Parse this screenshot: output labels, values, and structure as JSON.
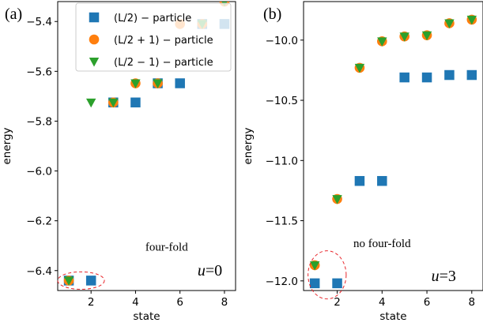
{
  "chart_data": [
    {
      "type": "scatter",
      "panel_label": "(a)",
      "xlabel": "state",
      "ylabel": "energy",
      "xlim": [
        0.5,
        8.5
      ],
      "ylim": [
        -6.48,
        -5.32
      ],
      "xticks": [
        2,
        4,
        6,
        8
      ],
      "yticks": [
        -6.4,
        -6.2,
        -6.0,
        -5.8,
        -5.6,
        -5.4
      ],
      "xtick_labels": [
        "2",
        "4",
        "6",
        "8"
      ],
      "ytick_labels": [
        "−6.4",
        "−6.2",
        "−6.0",
        "−5.8",
        "−5.6",
        "−5.4"
      ],
      "series": [
        {
          "name": "(L/2) − particle",
          "marker": "square",
          "color": "#1f77b4",
          "x": [
            1,
            2,
            3,
            4,
            5,
            6,
            7,
            8
          ],
          "y": [
            -6.44,
            -6.44,
            -5.725,
            -5.725,
            -5.648,
            -5.648,
            -5.41,
            -5.41
          ]
        },
        {
          "name": "(L/2 + 1) − particle",
          "marker": "circle",
          "color": "#ff7f0e",
          "x": [
            1,
            3,
            4,
            5,
            6,
            7,
            8
          ],
          "y": [
            -6.44,
            -5.725,
            -5.648,
            -5.648,
            -5.41,
            -5.41,
            -5.32
          ]
        },
        {
          "name": "(L/2 − 1) − particle",
          "marker": "triangle-down",
          "color": "#2ca02c",
          "x": [
            1,
            2,
            3,
            4,
            5,
            7,
            8
          ],
          "y": [
            -6.44,
            -5.725,
            -5.725,
            -5.648,
            -5.648,
            -5.41,
            -5.32
          ]
        }
      ],
      "annotations": [
        {
          "text": "four-fold",
          "x": 5.4,
          "y": -6.32
        },
        {
          "text": "u=0",
          "italic_prefix": "u",
          "suffix": "=0",
          "x": 7.9,
          "y": -6.42
        }
      ],
      "highlight": {
        "shape": "dashed-ellipse",
        "color": "#e8262b",
        "cx": 1.55,
        "cy": -6.44,
        "rx": 1.05,
        "ry": 0.035
      },
      "legend": "top-right",
      "grid": false
    },
    {
      "type": "scatter",
      "panel_label": "(b)",
      "xlabel": "state",
      "ylabel": "energy",
      "xlim": [
        0.5,
        8.5
      ],
      "ylim": [
        -12.08,
        -9.68
      ],
      "xticks": [
        2,
        4,
        6,
        8
      ],
      "yticks": [
        -12.0,
        -11.5,
        -11.0,
        -10.5,
        -10.0
      ],
      "xtick_labels": [
        "2",
        "4",
        "6",
        "8"
      ],
      "ytick_labels": [
        "−12.0",
        "−11.5",
        "−11.0",
        "−10.5",
        "−10.0"
      ],
      "series": [
        {
          "name": "(L/2) − particle",
          "marker": "square",
          "color": "#1f77b4",
          "x": [
            1,
            2,
            3,
            4,
            5,
            6,
            7,
            8
          ],
          "y": [
            -12.02,
            -12.02,
            -11.17,
            -11.17,
            -10.31,
            -10.31,
            -10.29,
            -10.29
          ]
        },
        {
          "name": "(L/2 + 1) − particle",
          "marker": "circle",
          "color": "#ff7f0e",
          "x": [
            1,
            2,
            3,
            4,
            5,
            6,
            7,
            8
          ],
          "y": [
            -11.87,
            -11.32,
            -10.23,
            -10.01,
            -9.97,
            -9.96,
            -9.86,
            -9.83
          ]
        },
        {
          "name": "(L/2 − 1) − particle",
          "marker": "triangle-down",
          "color": "#2ca02c",
          "x": [
            1,
            2,
            3,
            4,
            5,
            6,
            7,
            8
          ],
          "y": [
            -11.87,
            -11.32,
            -10.23,
            -10.01,
            -9.97,
            -9.96,
            -9.86,
            -9.83
          ]
        }
      ],
      "annotations": [
        {
          "text": "no four-fold",
          "x": 4.0,
          "y": -11.72
        },
        {
          "text": "u=3",
          "italic_prefix": "u",
          "suffix": "=3",
          "x": 7.3,
          "y": -12.0
        }
      ],
      "highlight": {
        "shape": "dashed-ellipse",
        "color": "#e8262b",
        "cx": 1.55,
        "cy": -11.95,
        "rx": 0.85,
        "ry": 0.2
      },
      "grid": false
    }
  ]
}
